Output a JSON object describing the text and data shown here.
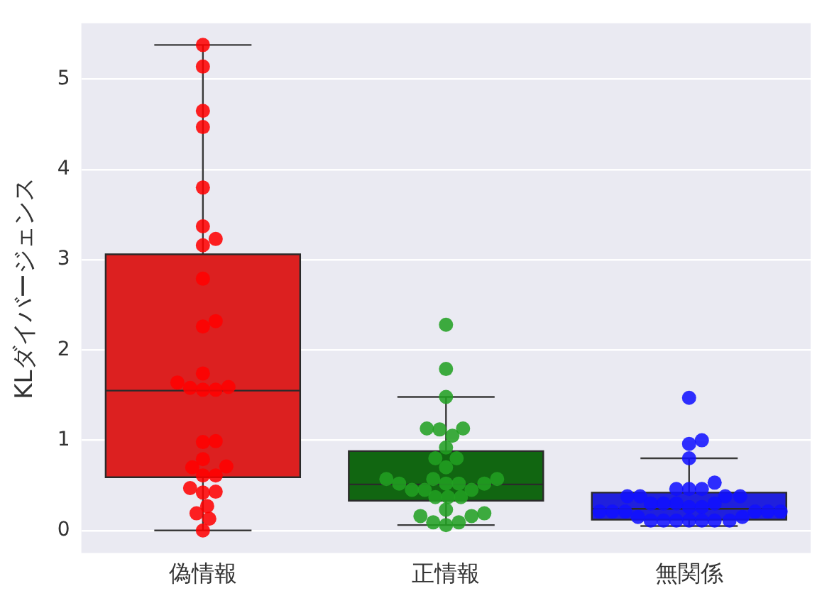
{
  "chart_data": {
    "type": "box",
    "ylabel": "KLダイバージェンス",
    "categories": [
      "偽情報",
      "正情報",
      "無関係"
    ],
    "colors": [
      "#dc2020",
      "#116611",
      "#2020dd"
    ],
    "boxes": [
      {
        "low": 0,
        "q1": 0.59,
        "median": 1.55,
        "q3": 3.06,
        "high": 5.38
      },
      {
        "low": 0.06,
        "q1": 0.33,
        "median": 0.51,
        "q3": 0.88,
        "high": 1.48
      },
      {
        "low": 0.05,
        "q1": 0.12,
        "median": 0.24,
        "q3": 0.42,
        "high": 0.8
      }
    ],
    "series": [
      {
        "type": "scatter",
        "color": "#ff0000",
        "x": [
          "偽情報",
          "偽情報",
          "偽情報",
          "偽情報",
          "偽情報",
          "偽情報",
          "偽情報",
          "偽情報",
          "偽情報",
          "偽情報",
          "偽情報",
          "偽情報",
          "偽情報",
          "偽情報",
          "偽情報",
          "偽情報",
          "偽情報",
          "偽情報",
          "偽情報",
          "偽情報",
          "偽情報",
          "偽情報",
          "偽情報",
          "偽情報",
          "偽情報",
          "偽情報",
          "偽情報",
          "偽情報",
          "偽情報",
          "偽情報",
          "偽情報"
        ],
        "values": [
          5.38,
          5.14,
          4.65,
          4.47,
          3.8,
          3.37,
          3.23,
          3.16,
          2.79,
          2.32,
          2.26,
          1.74,
          1.64,
          1.58,
          1.56,
          1.56,
          1.59,
          0.99,
          0.98,
          0.79,
          0.7,
          0.71,
          0.61,
          0.61,
          0.47,
          0.43,
          0.42,
          0.27,
          0.19,
          0.13,
          0
        ]
      },
      {
        "type": "scatter",
        "color": "#22a022",
        "x": [
          "正情報",
          "正情報",
          "正情報",
          "正情報",
          "正情報",
          "正情報",
          "正情報",
          "正情報",
          "正情報",
          "正情報",
          "正情報",
          "正情報",
          "正情報",
          "正情報",
          "正情報",
          "正情報",
          "正情報",
          "正情報",
          "正情報",
          "正情報",
          "正情報",
          "正情報",
          "正情報",
          "正情報",
          "正情報",
          "正情報",
          "正情報",
          "正情報",
          "正情報",
          "正情報",
          "正情報"
        ],
        "values": [
          2.28,
          1.79,
          1.48,
          1.12,
          1.13,
          1.13,
          1.05,
          0.92,
          0.8,
          0.8,
          0.7,
          0.57,
          0.57,
          0.57,
          0.52,
          0.52,
          0.52,
          0.52,
          0.45,
          0.45,
          0.45,
          0.37,
          0.37,
          0.37,
          0.23,
          0.16,
          0.19,
          0.16,
          0.09,
          0.09,
          0.06
        ]
      },
      {
        "type": "scatter",
        "color": "#1010ff",
        "x": [
          "無関係",
          "無関係",
          "無関係",
          "無関係",
          "無関係",
          "無関係",
          "無関係",
          "無関係",
          "無関係",
          "無関係",
          "無関係",
          "無関係",
          "無関係",
          "無関係",
          "無関係",
          "無関係",
          "無関係",
          "無関係",
          "無関係",
          "無関係",
          "無関係",
          "無関係",
          "無関係",
          "無関係",
          "無関係",
          "無関係",
          "無関係",
          "無関係",
          "無関係",
          "無関係",
          "無関係",
          "無関係",
          "無関係"
        ],
        "values": [
          1.47,
          1,
          0.96,
          0.8,
          0.53,
          0.46,
          0.46,
          0.46,
          0.38,
          0.38,
          0.38,
          0.38,
          0.3,
          0.3,
          0.3,
          0.3,
          0.26,
          0.26,
          0.21,
          0.21,
          0.21,
          0.21,
          0.21,
          0.21,
          0.15,
          0.15,
          0.11,
          0.11,
          0.11,
          0.11,
          0.11,
          0.11,
          0.11
        ]
      }
    ],
    "ylim": [
      -0.25,
      5.62
    ],
    "yticks": [
      0,
      1,
      2,
      3,
      4,
      5
    ],
    "grid": "y",
    "legend": false,
    "marker": "circle"
  }
}
